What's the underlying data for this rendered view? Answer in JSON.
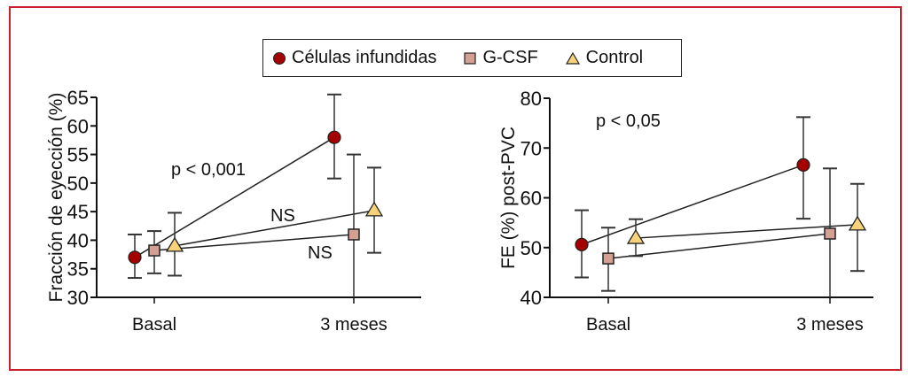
{
  "legend": {
    "items": [
      {
        "label": "Células infundidas",
        "marker": "circle",
        "color": "#a50000"
      },
      {
        "label": "G-CSF",
        "marker": "square",
        "color": "#d4a094"
      },
      {
        "label": "Control",
        "marker": "triangle",
        "color": "#f7d27a"
      }
    ]
  },
  "colors": {
    "frame": "#c8202f",
    "line": "#222222"
  },
  "chart_data": [
    {
      "type": "line",
      "ylabel": "Fracción de eyección (%)",
      "xlabel": "",
      "ylim": [
        30,
        65
      ],
      "yticks": [
        30,
        35,
        40,
        45,
        50,
        55,
        60,
        65
      ],
      "categories": [
        "Basal",
        "3 meses"
      ],
      "series": [
        {
          "name": "Células infundidas",
          "values": [
            37.0,
            58.0
          ],
          "err_high": [
            41.0,
            65.5
          ],
          "err_low": [
            33.4,
            50.8
          ]
        },
        {
          "name": "G-CSF",
          "values": [
            38.2,
            41.0
          ],
          "err_high": [
            41.6,
            55.0
          ],
          "err_low": [
            34.2,
            30.0
          ]
        },
        {
          "name": "Control",
          "values": [
            39.0,
            45.2
          ],
          "err_high": [
            44.8,
            52.7
          ],
          "err_low": [
            33.8,
            37.8
          ]
        }
      ],
      "annotations": [
        {
          "text": "p < 0,001",
          "refers_to": "Células infundidas"
        },
        {
          "text": "NS",
          "refers_to": "Control"
        },
        {
          "text": "NS",
          "refers_to": "G-CSF"
        }
      ]
    },
    {
      "type": "line",
      "ylabel": "FE (%) post-PVC",
      "xlabel": "",
      "ylim": [
        40,
        80
      ],
      "yticks": [
        40,
        50,
        60,
        70,
        80
      ],
      "categories": [
        "Basal",
        "3 meses"
      ],
      "series": [
        {
          "name": "Células infundidas",
          "values": [
            50.6,
            66.6
          ],
          "err_high": [
            57.5,
            76.2
          ],
          "err_low": [
            44.0,
            55.8
          ]
        },
        {
          "name": "G-CSF",
          "values": [
            47.8,
            52.8
          ],
          "err_high": [
            54.0,
            65.9
          ],
          "err_low": [
            41.3,
            40.0
          ]
        },
        {
          "name": "Control",
          "values": [
            51.9,
            54.6
          ],
          "err_high": [
            55.7,
            62.8
          ],
          "err_low": [
            48.3,
            45.3
          ]
        }
      ],
      "annotations": [
        {
          "text": "p < 0,05",
          "refers_to": "Células infundidas"
        }
      ]
    }
  ]
}
